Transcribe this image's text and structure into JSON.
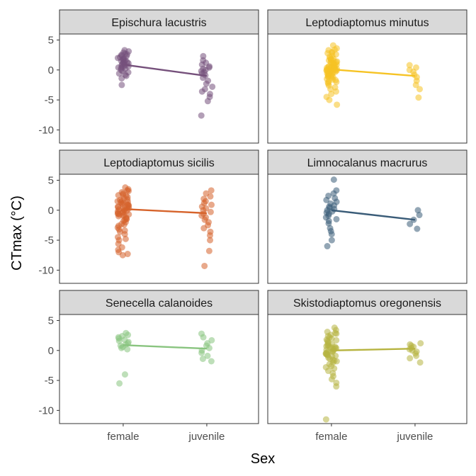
{
  "chart_data": {
    "type": "scatter",
    "layout": "facet-grid",
    "xlabel": "Sex",
    "ylabel": "CTmax (°C)",
    "x_categories": [
      "female",
      "juvenile"
    ],
    "y_ticks": [
      5,
      0,
      -5,
      -10
    ],
    "ylim": [
      -12.2,
      6
    ],
    "grid": false,
    "point_alpha": 0.55,
    "panels": [
      {
        "title": "Epischura lacustris",
        "color": "#75507B",
        "trend": {
          "female": 0.9,
          "juvenile": -1.0
        },
        "points": {
          "female": [
            3.3,
            3.1,
            2.9,
            2.7,
            2.6,
            2.5,
            2.4,
            2.3,
            2.1,
            2.0,
            1.9,
            1.8,
            1.7,
            1.6,
            1.5,
            1.4,
            1.3,
            1.2,
            1.1,
            1.0,
            0.9,
            0.8,
            0.7,
            0.6,
            0.5,
            0.4,
            0.3,
            0.2,
            0.0,
            -0.2,
            -0.4,
            -0.6,
            -0.8,
            -1.0,
            -1.4,
            -2.5
          ],
          "juvenile": [
            2.3,
            1.6,
            1.2,
            0.9,
            0.6,
            0.4,
            0.2,
            0.0,
            -0.2,
            -0.4,
            -0.6,
            -0.9,
            -1.3,
            -1.8,
            -2.3,
            -2.8,
            -3.2,
            -3.6,
            -4.0,
            -4.5,
            -5.2,
            -7.6
          ]
        }
      },
      {
        "title": "Leptodiaptomus minutus",
        "color": "#F6C324",
        "trend": {
          "female": 0.1,
          "juvenile": -1.0
        },
        "points": {
          "female": [
            4.1,
            3.6,
            3.3,
            3.0,
            2.8,
            2.6,
            2.4,
            2.2,
            2.0,
            1.8,
            1.7,
            1.6,
            1.5,
            1.4,
            1.3,
            1.2,
            1.1,
            1.0,
            0.9,
            0.8,
            0.7,
            0.6,
            0.5,
            0.45,
            0.4,
            0.35,
            0.3,
            0.25,
            0.2,
            0.15,
            0.1,
            0.05,
            0.0,
            -0.05,
            -0.1,
            -0.15,
            -0.2,
            -0.3,
            -0.4,
            -0.5,
            -0.6,
            -0.7,
            -0.8,
            -0.9,
            -1.0,
            -1.1,
            -1.2,
            -1.3,
            -1.5,
            -1.7,
            -1.9,
            -2.1,
            -2.3,
            -2.6,
            -2.9,
            -3.2,
            -3.6,
            -4.0,
            -4.5,
            -5.0,
            -5.8,
            2.9,
            1.9,
            0.9,
            -0.1,
            -1.1,
            -2.0,
            3.4,
            0.6,
            -0.6,
            1.3,
            -1.6,
            0.2,
            -0.3
          ],
          "juvenile": [
            0.8,
            0.4,
            0.0,
            -0.3,
            -0.8,
            -1.2,
            -1.8,
            -2.5,
            -3.2,
            -4.6
          ]
        }
      },
      {
        "title": "Leptodiaptomus sicilis",
        "color": "#D6632B",
        "trend": {
          "female": 0.2,
          "juvenile": -0.5
        },
        "points": {
          "female": [
            3.8,
            3.5,
            3.2,
            3.0,
            2.8,
            2.6,
            2.4,
            2.2,
            2.0,
            1.8,
            1.6,
            1.5,
            1.4,
            1.3,
            1.2,
            1.1,
            1.0,
            0.9,
            0.8,
            0.7,
            0.6,
            0.5,
            0.4,
            0.3,
            0.2,
            0.1,
            0.0,
            -0.1,
            -0.2,
            -0.3,
            -0.4,
            -0.5,
            -0.6,
            -0.7,
            -0.8,
            -0.9,
            -1.0,
            -1.2,
            -1.4,
            -1.6,
            -1.8,
            -2.0,
            -2.3,
            -2.6,
            -2.9,
            -3.2,
            -3.6,
            -4.0,
            -4.5,
            -5.0,
            -5.6,
            -6.2,
            -7.0,
            -7.5,
            3.3,
            2.5,
            1.7,
            0.9,
            0.1,
            -0.7,
            -1.5,
            -2.4,
            -3.4,
            -4.8,
            -6.6,
            -7.3
          ],
          "juvenile": [
            3.3,
            2.8,
            2.3,
            1.9,
            1.5,
            1.2,
            0.9,
            0.6,
            0.3,
            0.0,
            -0.3,
            -0.6,
            -0.9,
            -1.2,
            -1.6,
            -2.0,
            -2.5,
            -3.0,
            -3.6,
            -4.2,
            -5.0,
            -6.8,
            -9.3
          ]
        }
      },
      {
        "title": "Limnocalanus macrurus",
        "color": "#3A5C78",
        "trend": {
          "female": 0.0,
          "juvenile": -1.6
        },
        "points": {
          "female": [
            5.1,
            3.3,
            2.8,
            2.4,
            2.0,
            1.7,
            1.4,
            1.1,
            0.8,
            0.6,
            0.4,
            0.2,
            0.0,
            -0.2,
            -0.4,
            -0.6,
            -0.9,
            -1.2,
            -1.5,
            -1.8,
            -2.2,
            -3.0,
            -3.5,
            -4.0,
            -5.0,
            -6.0
          ],
          "juvenile": [
            0.0,
            -0.8,
            -1.6,
            -2.3,
            -3.1
          ]
        }
      },
      {
        "title": "Senecella calanoides",
        "color": "#89C47F",
        "trend": {
          "female": 0.9,
          "juvenile": 0.3
        },
        "points": {
          "female": [
            2.9,
            2.6,
            2.4,
            2.2,
            2.0,
            1.8,
            1.6,
            1.4,
            1.2,
            1.0,
            0.8,
            0.6,
            0.4,
            0.2,
            -4.0,
            -5.5
          ],
          "juvenile": [
            2.8,
            2.2,
            1.7,
            1.2,
            0.8,
            0.4,
            0.0,
            -0.4,
            -0.9,
            -1.4,
            -1.8
          ]
        }
      },
      {
        "title": "Skistodiaptomus oregonensis",
        "color": "#B7B441",
        "trend": {
          "female": 0.0,
          "juvenile": 0.3
        },
        "points": {
          "female": [
            3.8,
            3.4,
            3.1,
            2.8,
            2.6,
            2.4,
            2.2,
            2.0,
            1.8,
            1.6,
            1.4,
            1.2,
            1.0,
            0.9,
            0.8,
            0.7,
            0.6,
            0.5,
            0.4,
            0.3,
            0.2,
            0.1,
            0.0,
            -0.1,
            -0.2,
            -0.3,
            -0.4,
            -0.5,
            -0.6,
            -0.7,
            -0.8,
            -0.9,
            -1.0,
            -1.2,
            -1.4,
            -1.6,
            -1.8,
            -2.0,
            -2.3,
            -2.6,
            -3.0,
            -3.4,
            -3.8,
            -4.3,
            -4.8,
            -5.4,
            -6.0,
            -11.5,
            2.9,
            1.7,
            0.5,
            -0.6,
            -1.7,
            -2.8
          ],
          "juvenile": [
            1.2,
            1.0,
            0.8,
            0.6,
            0.4,
            0.2,
            0.0,
            -0.2,
            -0.5,
            -0.9,
            -1.3,
            -2.0
          ]
        }
      }
    ]
  }
}
